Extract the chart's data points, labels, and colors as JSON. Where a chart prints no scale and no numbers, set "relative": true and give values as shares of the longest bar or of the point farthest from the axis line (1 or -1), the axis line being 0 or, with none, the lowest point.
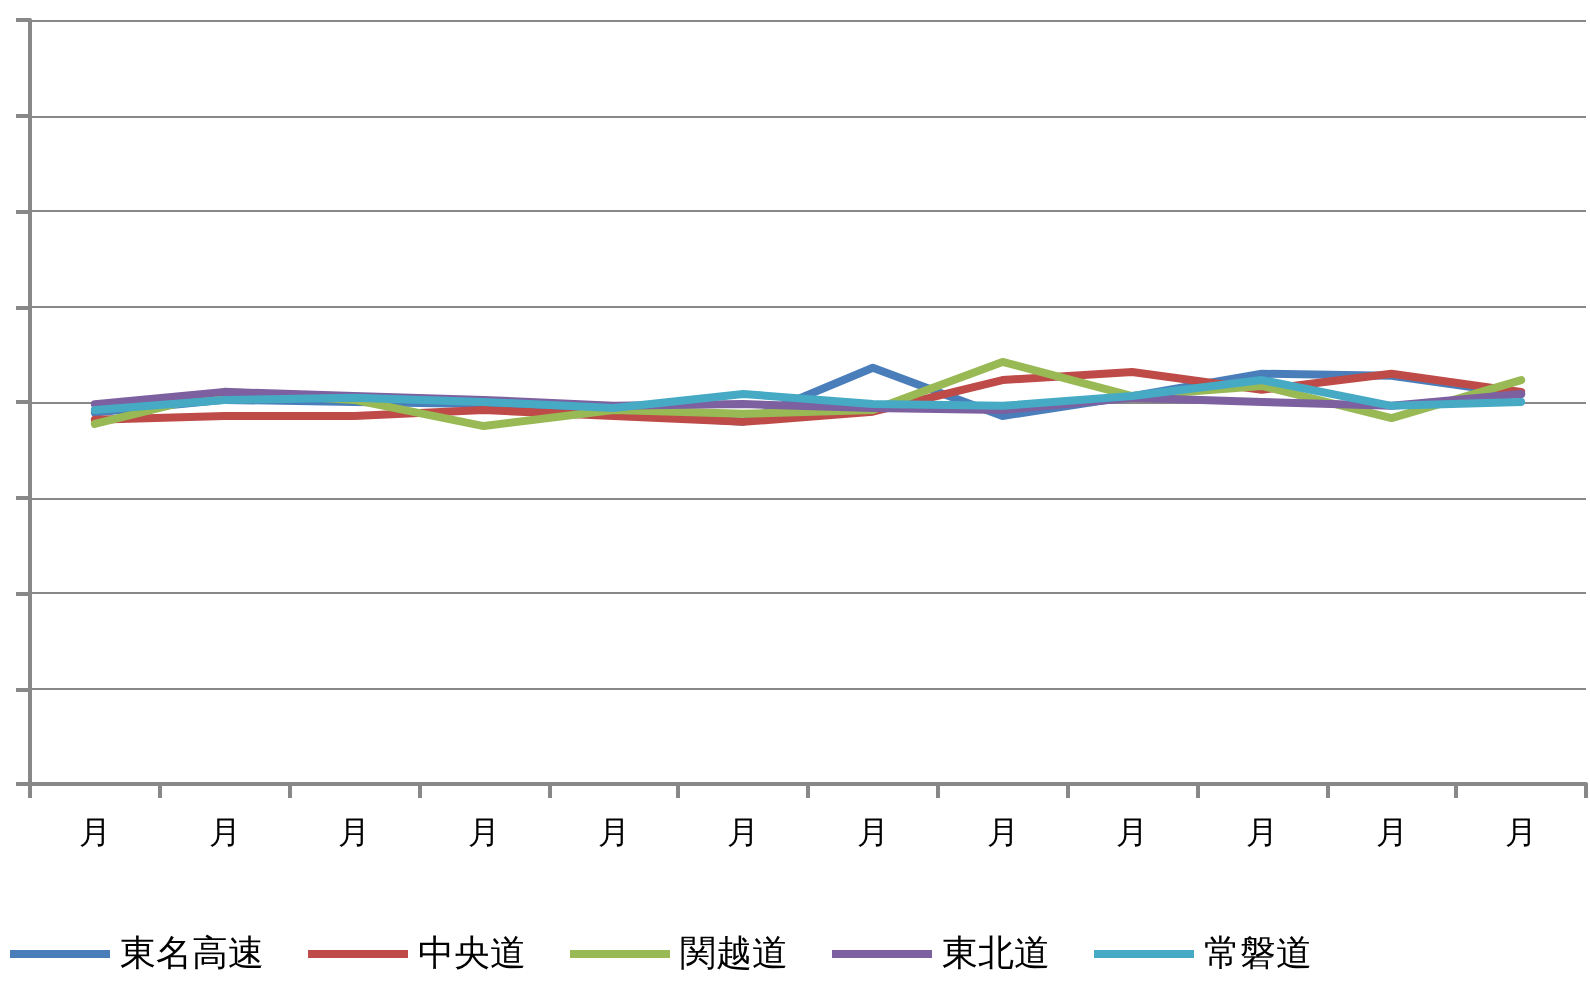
{
  "chart_data": {
    "type": "line",
    "relative": true,
    "grid": "y",
    "legend": "bottom",
    "marker": "none",
    "line_style": "solid",
    "categories": [
      "月",
      "月",
      "月",
      "月",
      "月",
      "月",
      "月",
      "月",
      "月",
      "月",
      "月",
      "月"
    ],
    "series": [
      {
        "name": "東名高速",
        "color": "#4a7ebb",
        "values": [
          0.88,
          0.91,
          0.905,
          0.9,
          0.877,
          0.858,
          0.986,
          0.872,
          0.919,
          0.972,
          0.967,
          0.924
        ]
      },
      {
        "name": "中央道",
        "color": "#be4b48",
        "values": [
          0.863,
          0.872,
          0.872,
          0.886,
          0.872,
          0.858,
          0.882,
          0.957,
          0.976,
          0.934,
          0.972,
          0.929
        ]
      },
      {
        "name": "関越道",
        "color": "#98b954",
        "values": [
          0.853,
          0.929,
          0.91,
          0.848,
          0.886,
          0.877,
          0.886,
          1,
          0.919,
          0.943,
          0.867,
          0.957
        ]
      },
      {
        "name": "東北道",
        "color": "#7d60a0",
        "values": [
          0.9,
          0.929,
          0.919,
          0.91,
          0.896,
          0.9,
          0.891,
          0.886,
          0.915,
          0.905,
          0.896,
          0.924
        ]
      },
      {
        "name": "常磐道",
        "color": "#46aac5",
        "values": [
          0.886,
          0.91,
          0.915,
          0.905,
          0.891,
          0.924,
          0.9,
          0.896,
          0.919,
          0.957,
          0.896,
          0.905
        ]
      }
    ]
  }
}
